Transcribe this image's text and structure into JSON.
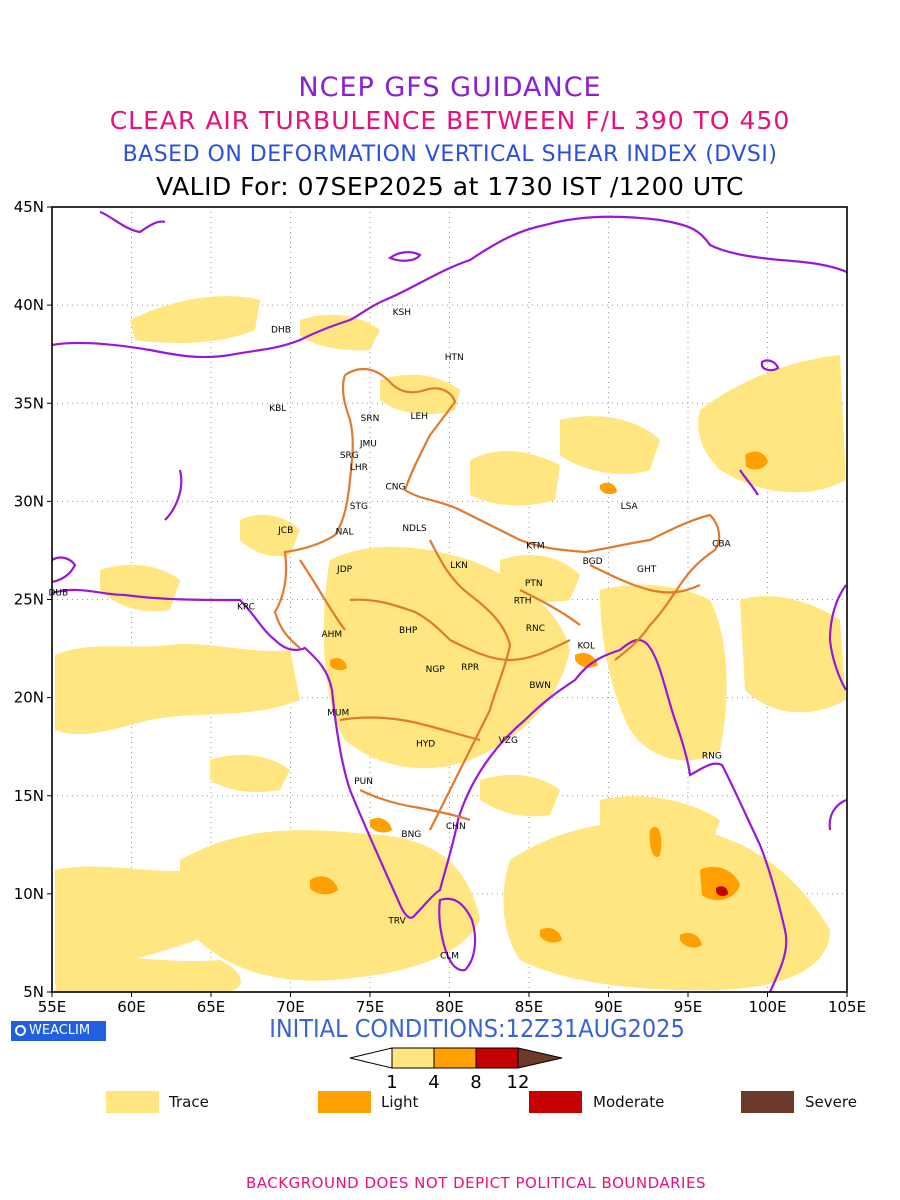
{
  "header": {
    "line1": "NCEP GFS GUIDANCE",
    "line2": "CLEAR AIR TURBULENCE BETWEEN F/L 390 TO 450",
    "line3": "BASED ON DEFORMATION VERTICAL SHEAR INDEX (DVSI)",
    "line4": "VALID For: 07SEP2025 at 1730 IST /1200 UTC",
    "colors": {
      "line1": "#8a1fd6",
      "line2": "#e8107c",
      "line3": "#2a4fe0",
      "line4": "#000000"
    }
  },
  "map": {
    "lon_range": [
      55,
      105
    ],
    "lat_range": [
      5,
      45
    ],
    "lon_ticks": [
      "55E",
      "60E",
      "65E",
      "70E",
      "75E",
      "80E",
      "85E",
      "90E",
      "95E",
      "100E",
      "105E"
    ],
    "lat_ticks": [
      "5N",
      "10N",
      "15N",
      "20N",
      "25N",
      "30N",
      "35N",
      "40N",
      "45N"
    ],
    "grid": "dotted",
    "stations": [
      {
        "code": "KSH",
        "lon": 77.0,
        "lat": 39.5
      },
      {
        "code": "HTN",
        "lon": 80.3,
        "lat": 37.2
      },
      {
        "code": "DHB",
        "lon": 69.4,
        "lat": 38.6
      },
      {
        "code": "KBL",
        "lon": 69.2,
        "lat": 34.6
      },
      {
        "code": "SRN",
        "lon": 75.0,
        "lat": 34.1
      },
      {
        "code": "LEH",
        "lon": 78.1,
        "lat": 34.2
      },
      {
        "code": "JMU",
        "lon": 74.9,
        "lat": 32.8
      },
      {
        "code": "SRG",
        "lon": 73.7,
        "lat": 32.2
      },
      {
        "code": "LHR",
        "lon": 74.3,
        "lat": 31.6
      },
      {
        "code": "CNG",
        "lon": 76.6,
        "lat": 30.6
      },
      {
        "code": "STG",
        "lon": 74.3,
        "lat": 29.6
      },
      {
        "code": "NDLS",
        "lon": 77.8,
        "lat": 28.5
      },
      {
        "code": "NAL",
        "lon": 73.4,
        "lat": 28.3
      },
      {
        "code": "JCB",
        "lon": 69.7,
        "lat": 28.4
      },
      {
        "code": "JDP",
        "lon": 73.4,
        "lat": 26.4
      },
      {
        "code": "LKN",
        "lon": 80.6,
        "lat": 26.6
      },
      {
        "code": "KTM",
        "lon": 85.4,
        "lat": 27.6
      },
      {
        "code": "LSA",
        "lon": 91.3,
        "lat": 29.6
      },
      {
        "code": "CBA",
        "lon": 97.1,
        "lat": 27.7
      },
      {
        "code": "BGD",
        "lon": 89.0,
        "lat": 26.8
      },
      {
        "code": "GHT",
        "lon": 92.4,
        "lat": 26.4
      },
      {
        "code": "PTN",
        "lon": 85.3,
        "lat": 25.7
      },
      {
        "code": "RTH",
        "lon": 84.6,
        "lat": 24.8
      },
      {
        "code": "DUB",
        "lon": 55.4,
        "lat": 25.2
      },
      {
        "code": "KRC",
        "lon": 67.2,
        "lat": 24.5
      },
      {
        "code": "AHM",
        "lon": 72.6,
        "lat": 23.1
      },
      {
        "code": "BHP",
        "lon": 77.4,
        "lat": 23.3
      },
      {
        "code": "RNC",
        "lon": 85.4,
        "lat": 23.4
      },
      {
        "code": "KOL",
        "lon": 88.6,
        "lat": 22.5
      },
      {
        "code": "NGP",
        "lon": 79.1,
        "lat": 21.3
      },
      {
        "code": "RPR",
        "lon": 81.3,
        "lat": 21.4
      },
      {
        "code": "BWN",
        "lon": 85.7,
        "lat": 20.5
      },
      {
        "code": "MUM",
        "lon": 73.0,
        "lat": 19.1
      },
      {
        "code": "HYD",
        "lon": 78.5,
        "lat": 17.5
      },
      {
        "code": "VZG",
        "lon": 83.7,
        "lat": 17.7
      },
      {
        "code": "RNG",
        "lon": 96.5,
        "lat": 16.9
      },
      {
        "code": "PUN",
        "lon": 74.6,
        "lat": 15.6
      },
      {
        "code": "CHN",
        "lon": 80.4,
        "lat": 13.3
      },
      {
        "code": "BNG",
        "lon": 77.6,
        "lat": 12.9
      },
      {
        "code": "TRV",
        "lon": 76.7,
        "lat": 8.5
      },
      {
        "code": "CLM",
        "lon": 80.0,
        "lat": 6.7
      }
    ],
    "coast_color": "#9a18d4",
    "boundary_color": "#e07a2e"
  },
  "turbulence": {
    "levels": [
      1,
      4,
      8,
      12
    ],
    "colors": {
      "trace": "#ffe680",
      "light": "#ff9f00",
      "moderate": "#c60000",
      "severe": "#6b3a2a"
    }
  },
  "logo": {
    "text": "WEACLIM",
    "color": "#1f5fe0"
  },
  "initial_conditions": "INITIAL CONDITIONS:12Z31AUG2025",
  "legend": [
    {
      "label": "Trace",
      "color": "#ffe680"
    },
    {
      "label": "Light",
      "color": "#ff9f00"
    },
    {
      "label": "Moderate",
      "color": "#c60000"
    },
    {
      "label": "Severe",
      "color": "#6b3a2a"
    }
  ],
  "footer": "BACKGROUND DOES NOT DEPICT POLITICAL BOUNDARIES"
}
